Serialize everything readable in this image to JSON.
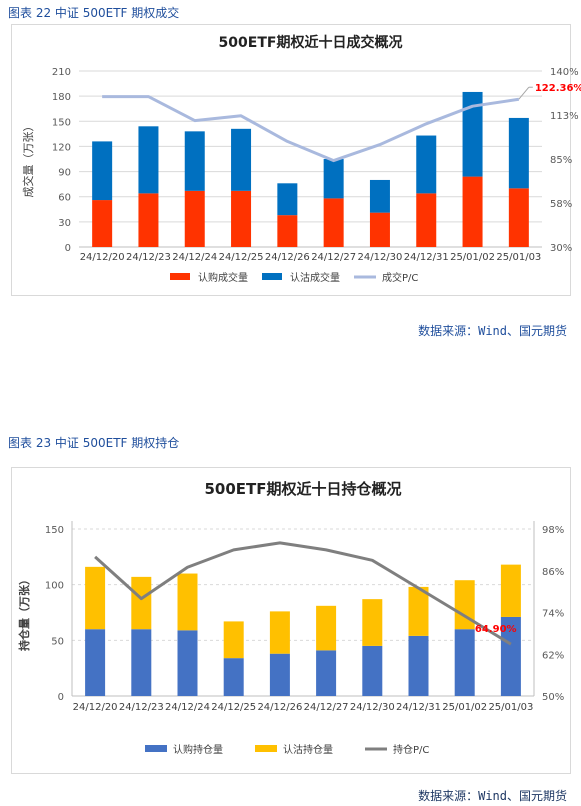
{
  "figure1": {
    "caption": "图表 22 中证 500ETF 期权成交",
    "source": "数据来源：Wind、国元期货"
  },
  "figure2": {
    "caption": "图表 23 中证 500ETF 期权持仓",
    "source": "数据来源：Wind、国元期货"
  },
  "chart_data": [
    {
      "type": "bar",
      "title": "500ETF期权近十日成交概况",
      "ylabel": "成交量（万张）",
      "ylim": [
        0,
        210
      ],
      "yticks": [
        0,
        30,
        60,
        90,
        120,
        150,
        180,
        210
      ],
      "y2lim": [
        0.3,
        1.4
      ],
      "y2ticks": [
        "30%",
        "58%",
        "85%",
        "113%",
        "140%"
      ],
      "categories": [
        "24/12/20",
        "24/12/23",
        "24/12/24",
        "24/12/25",
        "24/12/26",
        "24/12/27",
        "24/12/30",
        "24/12/31",
        "25/01/02",
        "25/01/03"
      ],
      "series": [
        {
          "name": "认购成交量",
          "kind": "bar",
          "stack": true,
          "color": "#ff3300",
          "values": [
            56,
            64,
            67,
            67,
            38,
            58,
            41,
            64,
            84,
            70
          ]
        },
        {
          "name": "认沽成交量",
          "kind": "bar",
          "stack": true,
          "color": "#0070c0",
          "values": [
            70,
            80,
            71,
            74,
            38,
            47,
            39,
            69,
            101,
            84
          ]
        },
        {
          "name": "成交P/C",
          "kind": "line",
          "axis": "right",
          "color": "#a9b9de",
          "values": [
            1.24,
            1.24,
            1.09,
            1.12,
            0.96,
            0.84,
            0.94,
            1.07,
            1.18,
            1.2236
          ]
        }
      ],
      "annotation": "122.36%",
      "legend": "bottom",
      "grid": true
    },
    {
      "type": "bar",
      "title": "500ETF期权近十日持仓概况",
      "ylabel": "持仓量（万张）",
      "ylim": [
        0,
        150
      ],
      "yticks": [
        0,
        50,
        100,
        150
      ],
      "y2lim": [
        0.5,
        0.98
      ],
      "y2ticks": [
        "50%",
        "62%",
        "74%",
        "86%",
        "98%"
      ],
      "categories": [
        "24/12/20",
        "24/12/23",
        "24/12/24",
        "24/12/25",
        "24/12/26",
        "24/12/27",
        "24/12/30",
        "24/12/31",
        "25/01/02",
        "25/01/03"
      ],
      "series": [
        {
          "name": "认购持仓量",
          "kind": "bar",
          "stack": true,
          "color": "#4472c4",
          "values": [
            60,
            60,
            59,
            34,
            38,
            41,
            45,
            54,
            60,
            71
          ]
        },
        {
          "name": "认沽持仓量",
          "kind": "bar",
          "stack": true,
          "color": "#ffc000",
          "values": [
            56,
            47,
            51,
            33,
            38,
            40,
            42,
            44,
            44,
            47
          ]
        },
        {
          "name": "持仓P/C",
          "kind": "line",
          "axis": "right",
          "color": "#7f7f7f",
          "values": [
            0.9,
            0.78,
            0.87,
            0.92,
            0.94,
            0.92,
            0.89,
            0.81,
            0.73,
            0.649
          ]
        }
      ],
      "annotation": "64.90%",
      "legend": "bottom",
      "grid": true
    }
  ]
}
